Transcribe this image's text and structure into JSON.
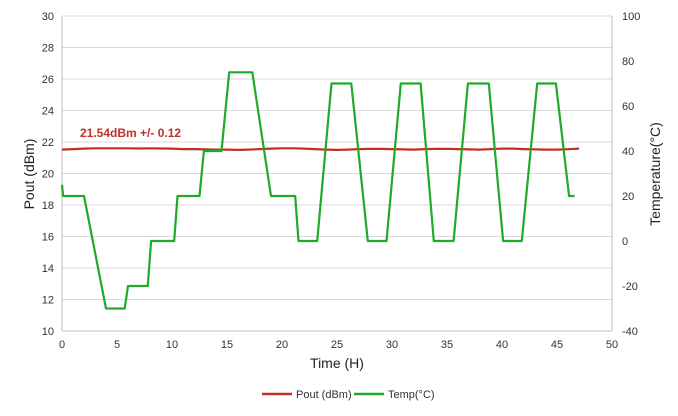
{
  "chart_data": {
    "type": "line",
    "title": "",
    "xlabel": "Time (H)",
    "ylabel": "Pout (dBm)",
    "y2label": "Temperature(°C)",
    "xlim": [
      0,
      50
    ],
    "ylim": [
      10,
      30
    ],
    "y2lim": [
      -40,
      100
    ],
    "xticks": [
      0,
      5,
      10,
      15,
      20,
      25,
      30,
      35,
      40,
      45,
      50
    ],
    "yticks": [
      10,
      12,
      14,
      16,
      18,
      20,
      22,
      24,
      26,
      28,
      30
    ],
    "y2ticks": [
      -40,
      -20,
      0,
      20,
      40,
      60,
      80,
      100
    ],
    "grid": "horizontal",
    "legend_position": "bottom",
    "annotation": "21.54dBm +/- 0.12",
    "colors": {
      "pout": "#c0302b",
      "temp": "#1faa2a",
      "grid": "#d9d9d9",
      "axis": "#bfbfbf"
    },
    "series": [
      {
        "name": "Pout (dBm)",
        "axis": "left",
        "x": [
          0,
          1,
          2,
          3,
          4,
          5,
          6,
          7,
          8,
          9,
          10,
          11,
          12,
          13,
          14,
          15,
          16,
          17,
          18,
          19,
          20,
          21,
          22,
          23,
          24,
          25,
          26,
          27,
          28,
          29,
          30,
          31,
          32,
          33,
          34,
          35,
          36,
          37,
          38,
          39,
          40,
          41,
          42,
          43,
          44,
          45,
          46,
          47
        ],
        "values": [
          21.52,
          21.55,
          21.58,
          21.6,
          21.6,
          21.6,
          21.6,
          21.59,
          21.6,
          21.59,
          21.58,
          21.55,
          21.55,
          21.53,
          21.52,
          21.52,
          21.5,
          21.52,
          21.55,
          21.58,
          21.6,
          21.6,
          21.58,
          21.55,
          21.52,
          21.5,
          21.52,
          21.55,
          21.57,
          21.56,
          21.55,
          21.53,
          21.52,
          21.55,
          21.56,
          21.57,
          21.55,
          21.53,
          21.52,
          21.55,
          21.58,
          21.58,
          21.55,
          21.53,
          21.52,
          21.52,
          21.54,
          21.58
        ]
      },
      {
        "name": "Temp(°C)",
        "axis": "right",
        "x": [
          0,
          0.1,
          2,
          4,
          5.7,
          6,
          7.8,
          8.1,
          10.2,
          10.5,
          12.5,
          12.9,
          14.5,
          15.2,
          17.3,
          19,
          21.2,
          21.5,
          23.2,
          24.5,
          26.3,
          27.8,
          29.5,
          30.8,
          32.6,
          33.8,
          35.6,
          36.9,
          38.8,
          40.1,
          41.8,
          43.2,
          44.9,
          46.1,
          46.6
        ],
        "values": [
          25,
          20,
          20,
          -30,
          -30,
          -20,
          -20,
          0,
          0,
          20,
          20,
          40,
          40,
          75,
          75,
          20,
          20,
          0,
          0,
          70,
          70,
          0,
          0,
          70,
          70,
          0,
          0,
          70,
          70,
          0,
          0,
          70,
          70,
          20,
          20
        ]
      }
    ]
  }
}
